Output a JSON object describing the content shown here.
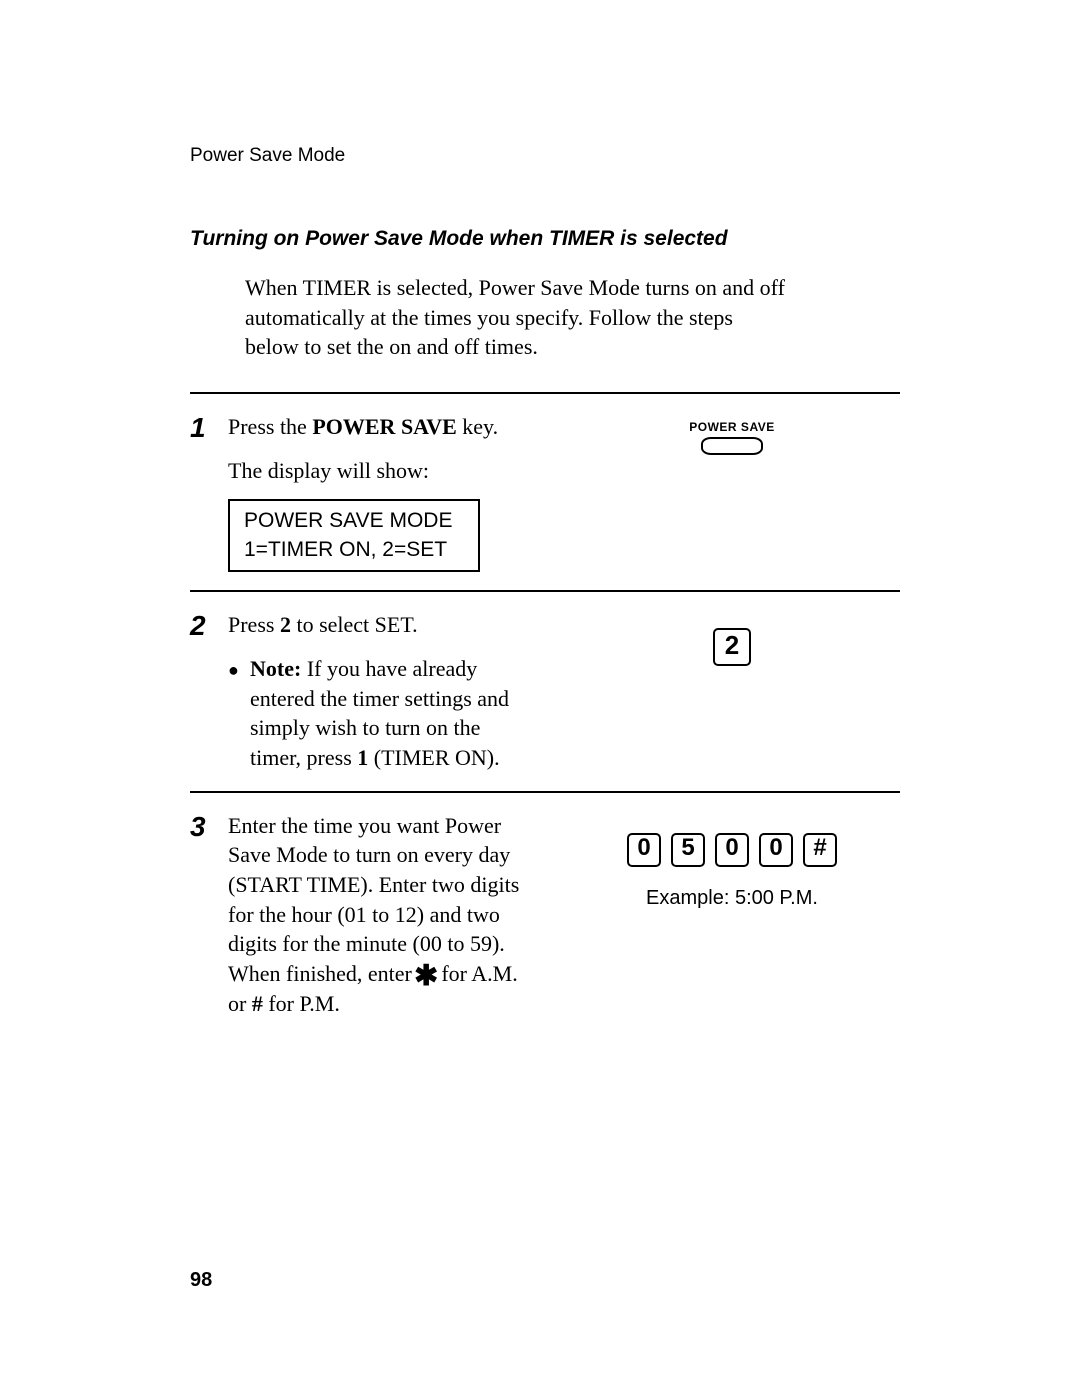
{
  "runningHead": "Power Save Mode",
  "sectionTitle": "Turning on Power Save Mode when TIMER is selected",
  "intro": "When TIMER is selected, Power Save Mode turns on and off automatically at the times you specify. Follow the steps below to set the on and off times.",
  "steps": {
    "s1": {
      "num": "1",
      "line1a": "Press the ",
      "line1b": "POWER SAVE",
      "line1c": " key.",
      "line2": "The display will show:",
      "displayLine1": "POWER SAVE MODE",
      "displayLine2": "1=TIMER ON, 2=SET",
      "buttonLabel": "POWER SAVE"
    },
    "s2": {
      "num": "2",
      "line1a": "Press ",
      "line1b": "2",
      "line1c": " to select SET.",
      "noteLabel": "Note:",
      "noteA": " If you have already entered the timer settings and simply wish to turn on the timer, press ",
      "noteB": "1",
      "noteC": " (TIMER ON).",
      "key": "2"
    },
    "s3": {
      "num": "3",
      "textA": "Enter the time you want Power Save Mode to turn on every day (START TIME). Enter two digits for the hour (01 to 12) and two digits for the minute (00 to 59). When finished, enter ",
      "textB": " for A.M. or ",
      "hash": "#",
      "textC": " for P.M.",
      "keys": [
        "0",
        "5",
        "0",
        "0",
        "#"
      ],
      "example": "Example: 5:00 P.M."
    }
  },
  "pageNumber": "98",
  "colors": {
    "text": "#000000",
    "background": "#ffffff"
  }
}
